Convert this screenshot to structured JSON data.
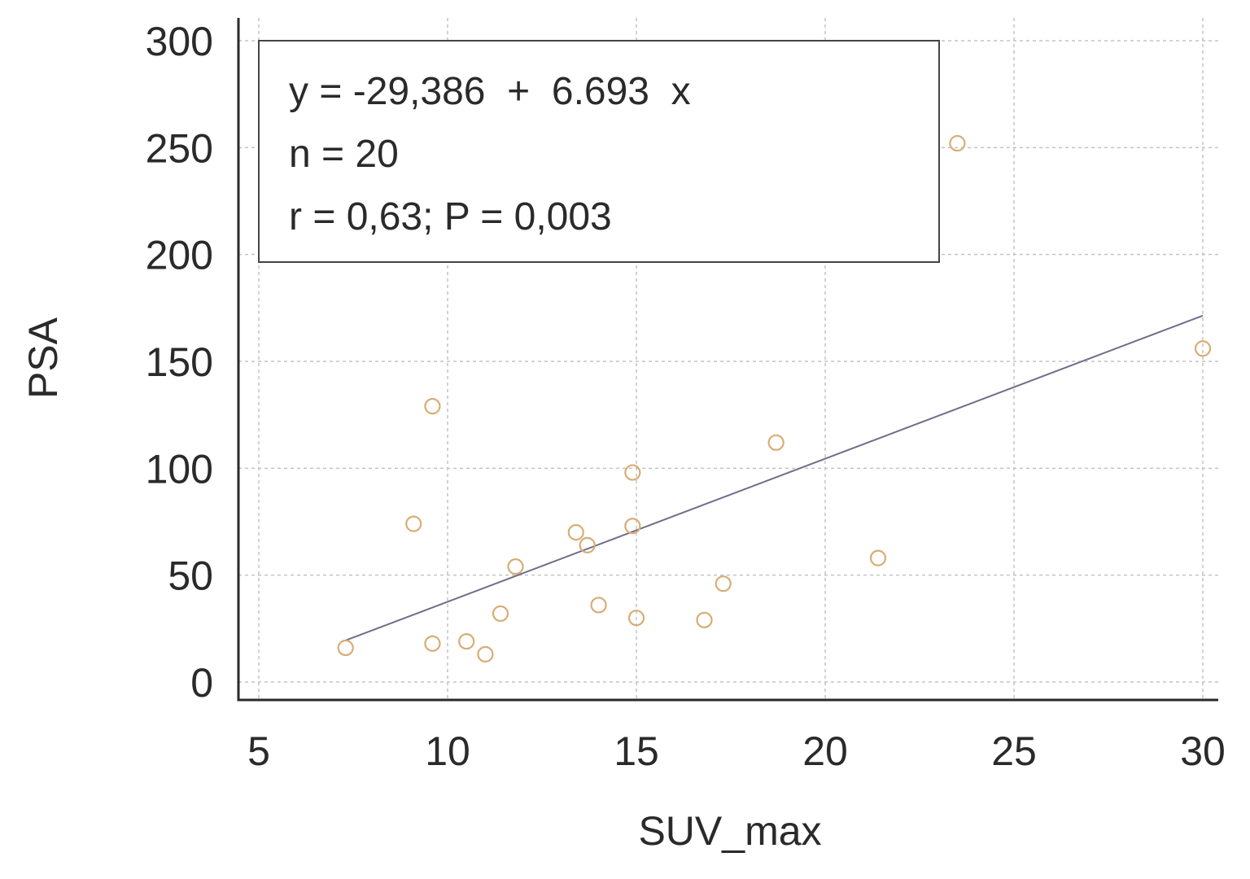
{
  "chart_data": {
    "type": "scatter",
    "xlabel": "SUV_max",
    "ylabel": "PSA",
    "xlim": [
      5,
      30
    ],
    "ylim": [
      0,
      300
    ],
    "x_ticks": [
      5,
      10,
      15,
      20,
      25,
      30
    ],
    "y_ticks": [
      0,
      50,
      100,
      150,
      200,
      250,
      300
    ],
    "grid": true,
    "points": [
      {
        "x": 7.3,
        "y": 16
      },
      {
        "x": 9.1,
        "y": 74
      },
      {
        "x": 9.6,
        "y": 129
      },
      {
        "x": 9.6,
        "y": 18
      },
      {
        "x": 10.5,
        "y": 19
      },
      {
        "x": 11.0,
        "y": 13
      },
      {
        "x": 11.4,
        "y": 32
      },
      {
        "x": 11.8,
        "y": 54
      },
      {
        "x": 13.4,
        "y": 70
      },
      {
        "x": 13.7,
        "y": 64
      },
      {
        "x": 14.0,
        "y": 36
      },
      {
        "x": 14.9,
        "y": 98
      },
      {
        "x": 14.9,
        "y": 73
      },
      {
        "x": 15.0,
        "y": 30
      },
      {
        "x": 16.8,
        "y": 29
      },
      {
        "x": 17.3,
        "y": 46
      },
      {
        "x": 18.7,
        "y": 112
      },
      {
        "x": 21.4,
        "y": 58
      },
      {
        "x": 23.5,
        "y": 252
      },
      {
        "x": 30.0,
        "y": 156
      }
    ],
    "regression": {
      "intercept": -29.386,
      "slope": 6.693,
      "x_range": [
        7.3,
        30.0
      ]
    },
    "annotation": {
      "equation": "y = -29,386  +  6.693  x",
      "n": "n = 20",
      "stats": "r = 0,63; P = 0,003"
    }
  }
}
